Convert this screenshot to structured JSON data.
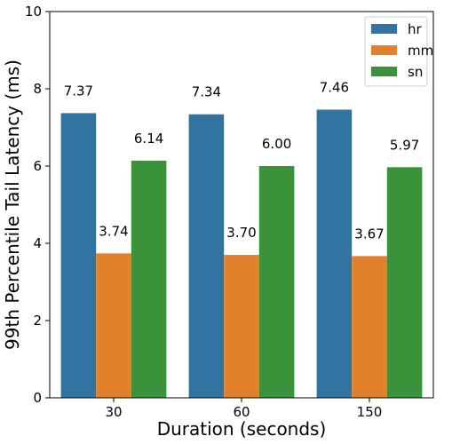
{
  "chart_data": {
    "type": "bar",
    "title": "",
    "xlabel": "Duration (seconds)",
    "ylabel": "99th Percentile Tail Latency (ms)",
    "categories": [
      "30",
      "60",
      "150"
    ],
    "ylim": [
      0,
      10
    ],
    "yticks": [
      0,
      2,
      4,
      6,
      8,
      10
    ],
    "grid": false,
    "legend_position": "top-right",
    "series": [
      {
        "name": "hr",
        "color": "#3274a1",
        "values": [
          7.37,
          7.34,
          7.46
        ],
        "labels": [
          "7.37",
          "7.34",
          "7.46"
        ]
      },
      {
        "name": "mm",
        "color": "#e1812c",
        "values": [
          3.74,
          3.7,
          3.67
        ],
        "labels": [
          "3.74",
          "3.70",
          "3.67"
        ]
      },
      {
        "name": "sn",
        "color": "#3a923a",
        "values": [
          6.14,
          6.0,
          5.97
        ],
        "labels": [
          "6.14",
          "6.00",
          "5.97"
        ]
      }
    ]
  }
}
